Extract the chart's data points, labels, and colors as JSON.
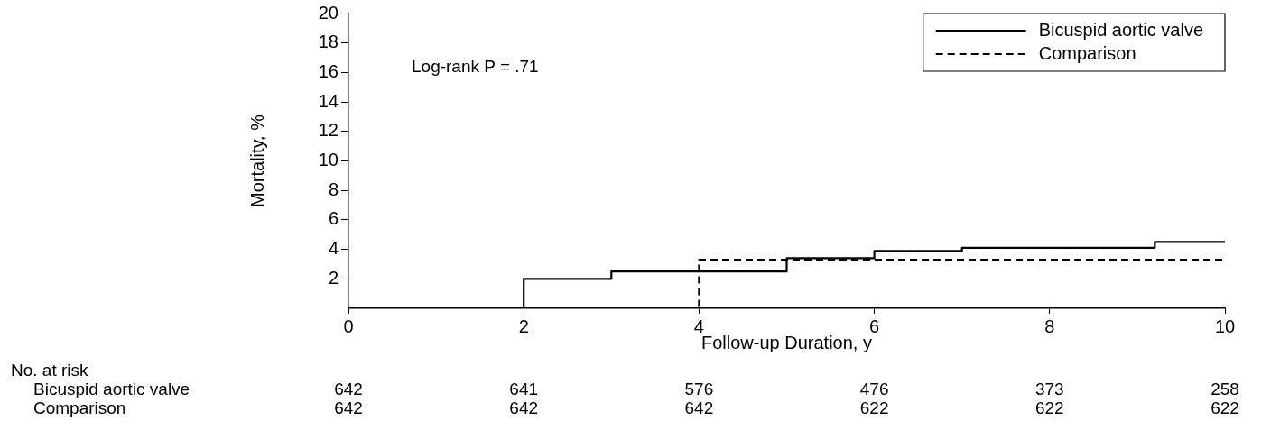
{
  "chart_data": {
    "type": "step",
    "xlabel": "Follow-up Duration, y",
    "ylabel": "Mortality, %",
    "xlim": [
      0,
      10
    ],
    "xticks": [
      0,
      2,
      4,
      6,
      8,
      10
    ],
    "ylim": [
      0,
      20
    ],
    "yticks": [
      2,
      4,
      6,
      8,
      10,
      12,
      14,
      16,
      18,
      20
    ],
    "grid": false,
    "legend": "top right",
    "marker": "none",
    "series": [
      {
        "name": "Bicuspid aortic valve",
        "color": "#000000",
        "line_style": "solid",
        "x": [
          0,
          2,
          3,
          5,
          6,
          7,
          9.2,
          10
        ],
        "values": [
          0,
          2,
          2.5,
          3.4,
          3.9,
          4.1,
          4.5,
          4.5
        ]
      },
      {
        "name": "Comparison",
        "color": "#000000",
        "line_style": "dashed",
        "x": [
          0,
          4,
          10
        ],
        "values": [
          0,
          3.3,
          3.3
        ]
      }
    ],
    "annotations": [
      "Log-rank P = .71",
      "No. at risk",
      "Bicuspid aortic valve",
      "642",
      "641",
      "576",
      "476",
      "373",
      "258",
      "Comparison",
      "642",
      "642",
      "642",
      "622",
      "622",
      "622"
    ]
  }
}
